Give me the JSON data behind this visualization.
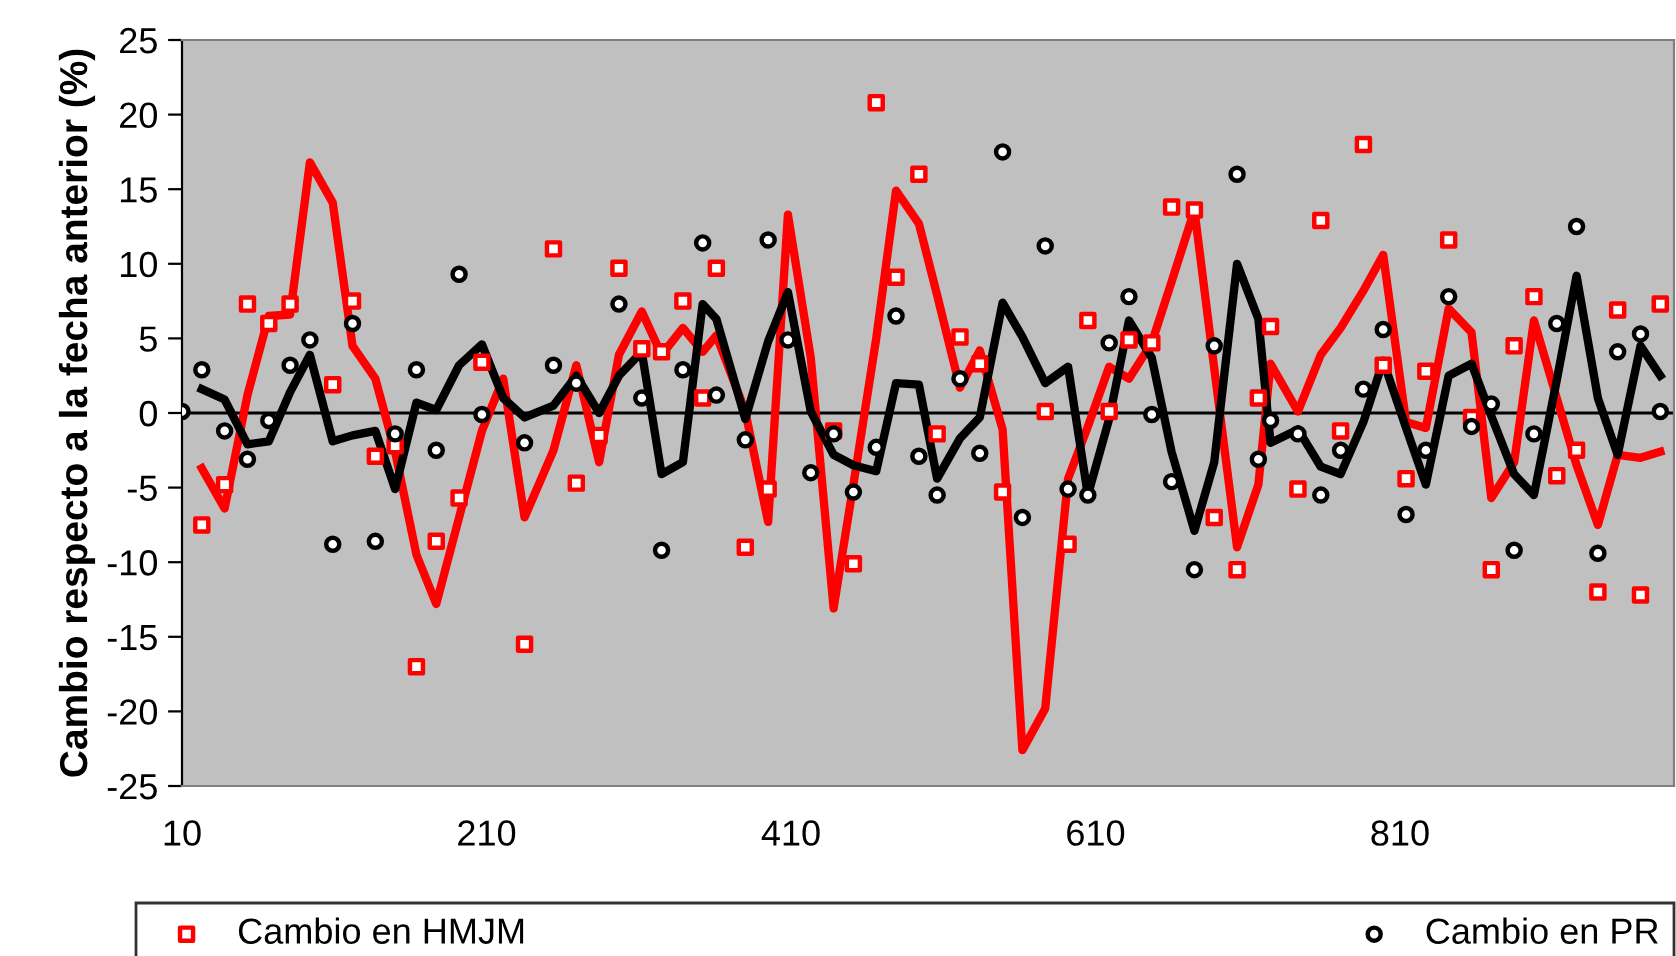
{
  "chart_data": {
    "type": "scatter",
    "ylabel": "Cambio respecto a la fecha anterior (%)",
    "x": [
      10,
      23,
      38,
      53,
      67,
      81,
      94,
      109,
      122,
      137,
      150,
      164,
      177,
      192,
      207,
      221,
      235,
      254,
      269,
      284,
      297,
      312,
      325,
      339,
      352,
      361,
      380,
      395,
      408,
      423,
      438,
      451,
      466,
      479,
      494,
      506,
      521,
      534,
      549,
      562,
      577,
      592,
      605,
      619,
      632,
      647,
      660,
      675,
      688,
      703,
      717,
      725,
      743,
      758,
      771,
      786,
      799,
      814,
      827,
      842,
      857,
      870,
      885,
      898,
      913,
      926,
      940,
      953,
      968,
      981
    ],
    "series": [
      {
        "type": "line",
        "color": "#ff0000",
        "marker": "none",
        "values": [
          null,
          -3.7,
          -6.4,
          1.2,
          6.5,
          6.6,
          16.8,
          14.1,
          4.5,
          2.3,
          -2.6,
          -9.5,
          -12.8,
          -7.0,
          -1.2,
          2.3,
          -7.0,
          -2.5,
          3.2,
          -3.3,
          3.9,
          6.8,
          3.9,
          5.7,
          4.1,
          5.2,
          0.1,
          -7.3,
          13.3,
          3.7,
          -13.1,
          -4.8,
          5.0,
          14.9,
          12.7,
          7.9,
          1.7,
          4.2,
          -1.1,
          -22.6,
          -19.8,
          -4.4,
          -0.9,
          3.1,
          2.3,
          4.7,
          8.8,
          13.6,
          3.0,
          -9.0,
          -4.8,
          3.3,
          0.1,
          3.9,
          5.7,
          8.2,
          10.6,
          -0.6,
          -1.0,
          7.0,
          5.4,
          -5.7,
          -3.3,
          6.2,
          1.0,
          -3.5,
          -7.5,
          -2.8,
          -3.0,
          -2.6
        ]
      },
      {
        "type": "line",
        "color": "#000000",
        "marker": "none",
        "values": [
          null,
          1.6,
          0.9,
          -2.1,
          -1.9,
          1.4,
          3.9,
          -1.9,
          -1.5,
          -1.2,
          -5.1,
          0.7,
          0.2,
          3.2,
          4.6,
          1.0,
          -0.3,
          0.5,
          2.5,
          0.0,
          2.5,
          4.1,
          -4.1,
          -3.3,
          7.3,
          6.3,
          -0.4,
          4.8,
          8.1,
          0.1,
          -2.8,
          -3.5,
          -3.9,
          2.0,
          1.9,
          -4.4,
          -1.7,
          -0.3,
          7.4,
          5.1,
          2.0,
          3.1,
          -5.5,
          -0.4,
          6.2,
          3.7,
          -2.6,
          -7.9,
          -3.3,
          10.0,
          6.3,
          -2.0,
          -1.1,
          -3.6,
          -4.1,
          -0.6,
          3.5,
          -1.0,
          -4.8,
          2.5,
          3.3,
          -0.2,
          -4.1,
          -5.5,
          2.2,
          9.2,
          1.0,
          -2.8,
          4.5,
          2.5
        ]
      },
      {
        "name": "Cambio en HMJM",
        "color": "#ff0000",
        "marker": "square",
        "values": [
          null,
          -7.5,
          -4.8,
          7.3,
          6.0,
          7.3,
          null,
          1.9,
          7.5,
          -2.9,
          -2.2,
          -17.0,
          -8.6,
          -5.7,
          3.4,
          null,
          -15.5,
          11.0,
          -4.7,
          -1.5,
          9.7,
          4.3,
          4.1,
          7.5,
          1.0,
          9.7,
          -9.0,
          -5.1,
          null,
          null,
          -1.2,
          -10.1,
          20.8,
          9.1,
          16.0,
          -1.4,
          5.1,
          3.3,
          -5.3,
          null,
          0.1,
          -8.8,
          6.2,
          0.1,
          4.9,
          4.7,
          13.8,
          13.6,
          -7.0,
          -10.5,
          1.0,
          5.8,
          -5.1,
          12.9,
          -1.2,
          18.0,
          3.2,
          -4.4,
          2.8,
          11.6,
          -0.3,
          -10.5,
          4.5,
          7.8,
          -4.2,
          -2.5,
          -12.0,
          6.9,
          -12.2,
          7.3
        ]
      },
      {
        "name": "Cambio en PR",
        "color": "#000000",
        "marker": "circle",
        "values": [
          0.1,
          2.9,
          -1.2,
          -3.1,
          -0.5,
          3.2,
          4.9,
          -8.8,
          6.0,
          -8.6,
          -1.4,
          2.9,
          -2.5,
          9.3,
          -0.1,
          null,
          -2.0,
          3.2,
          2.0,
          null,
          7.3,
          1.0,
          -9.2,
          2.9,
          11.4,
          1.2,
          -1.8,
          11.6,
          4.9,
          -4.0,
          -1.4,
          -5.3,
          -2.3,
          6.5,
          -2.9,
          -5.5,
          2.3,
          -2.7,
          17.5,
          -7.0,
          11.2,
          -5.1,
          -5.5,
          4.7,
          7.8,
          -0.1,
          -4.6,
          -10.5,
          4.5,
          16.0,
          -3.1,
          -0.5,
          -1.4,
          -5.5,
          -2.5,
          1.6,
          5.6,
          -6.8,
          -2.5,
          7.8,
          -0.9,
          0.6,
          -9.2,
          -1.4,
          6.0,
          12.5,
          -9.4,
          4.1,
          5.3,
          0.1
        ]
      }
    ],
    "xlim": [
      10,
      990
    ],
    "xticks": [
      10,
      210,
      410,
      610,
      810
    ],
    "ylim": [
      -25,
      25
    ],
    "yticks": [
      -25,
      -20,
      -15,
      -10,
      -5,
      0,
      5,
      10,
      15,
      20,
      25
    ],
    "ref_lines": [
      {
        "axis": "y",
        "value": 0,
        "color": "#000000"
      }
    ],
    "grid": false,
    "legend": "bottom"
  }
}
